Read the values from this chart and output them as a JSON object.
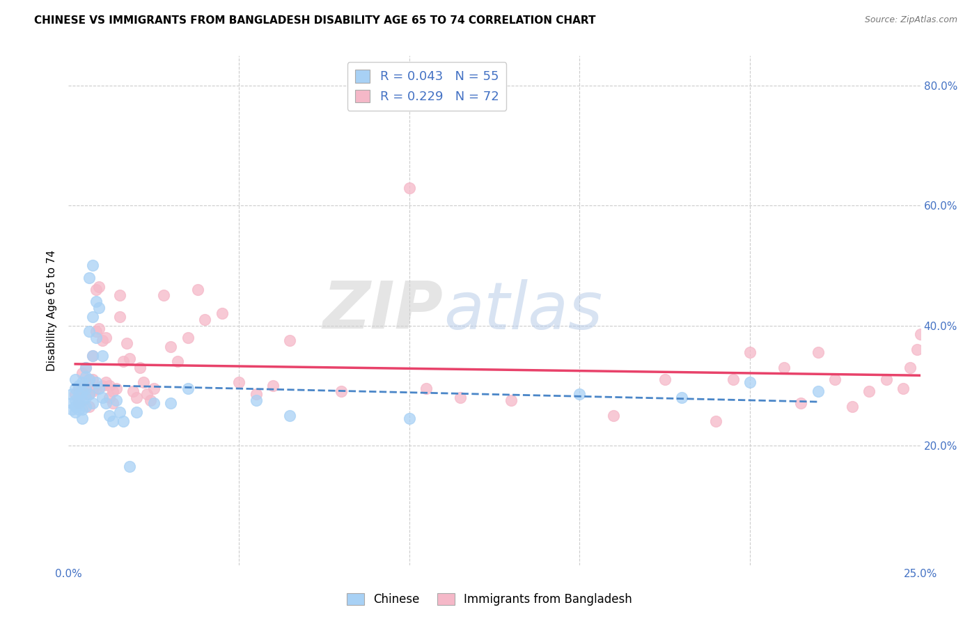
{
  "title": "CHINESE VS IMMIGRANTS FROM BANGLADESH DISABILITY AGE 65 TO 74 CORRELATION CHART",
  "source": "Source: ZipAtlas.com",
  "ylabel": "Disability Age 65 to 74",
  "xlim": [
    0.0,
    0.25
  ],
  "ylim": [
    0.0,
    0.85
  ],
  "xticks": [
    0.0,
    0.05,
    0.1,
    0.15,
    0.2,
    0.25
  ],
  "yticks": [
    0.0,
    0.2,
    0.4,
    0.6,
    0.8
  ],
  "ytick_labels": [
    "",
    "20.0%",
    "40.0%",
    "60.0%",
    "80.0%"
  ],
  "xtick_labels": [
    "0.0%",
    "",
    "",
    "",
    "",
    "25.0%"
  ],
  "watermark_zip": "ZIP",
  "watermark_atlas": "atlas",
  "legend_chinese_R": "0.043",
  "legend_chinese_N": "55",
  "legend_bangladesh_R": "0.229",
  "legend_bangladesh_N": "72",
  "chinese_color": "#A8D1F5",
  "bangladesh_color": "#F5B8C8",
  "trendline_chinese_color": "#4A86C8",
  "trendline_bangladesh_color": "#E8426A",
  "grid_color": "#CCCCCC",
  "axis_color": "#4472C4",
  "background_color": "#FFFFFF",
  "chinese_x": [
    0.001,
    0.001,
    0.001,
    0.002,
    0.002,
    0.002,
    0.002,
    0.002,
    0.003,
    0.003,
    0.003,
    0.003,
    0.004,
    0.004,
    0.004,
    0.004,
    0.004,
    0.005,
    0.005,
    0.005,
    0.005,
    0.005,
    0.006,
    0.006,
    0.006,
    0.006,
    0.007,
    0.007,
    0.007,
    0.007,
    0.008,
    0.008,
    0.008,
    0.009,
    0.009,
    0.01,
    0.01,
    0.011,
    0.012,
    0.013,
    0.014,
    0.015,
    0.016,
    0.018,
    0.02,
    0.025,
    0.03,
    0.035,
    0.055,
    0.065,
    0.1,
    0.15,
    0.18,
    0.2,
    0.22
  ],
  "chinese_y": [
    0.285,
    0.27,
    0.26,
    0.31,
    0.295,
    0.275,
    0.265,
    0.255,
    0.3,
    0.285,
    0.275,
    0.26,
    0.305,
    0.29,
    0.275,
    0.26,
    0.245,
    0.33,
    0.315,
    0.295,
    0.28,
    0.265,
    0.48,
    0.39,
    0.31,
    0.285,
    0.5,
    0.415,
    0.35,
    0.27,
    0.44,
    0.38,
    0.305,
    0.43,
    0.295,
    0.35,
    0.28,
    0.27,
    0.25,
    0.24,
    0.275,
    0.255,
    0.24,
    0.165,
    0.255,
    0.27,
    0.27,
    0.295,
    0.275,
    0.25,
    0.245,
    0.285,
    0.28,
    0.305,
    0.29
  ],
  "bangladesh_x": [
    0.002,
    0.003,
    0.003,
    0.004,
    0.004,
    0.005,
    0.005,
    0.005,
    0.006,
    0.006,
    0.006,
    0.007,
    0.007,
    0.007,
    0.008,
    0.008,
    0.008,
    0.009,
    0.009,
    0.01,
    0.01,
    0.011,
    0.011,
    0.012,
    0.012,
    0.013,
    0.013,
    0.014,
    0.015,
    0.015,
    0.016,
    0.017,
    0.018,
    0.019,
    0.02,
    0.021,
    0.022,
    0.023,
    0.024,
    0.025,
    0.028,
    0.03,
    0.032,
    0.035,
    0.038,
    0.04,
    0.045,
    0.05,
    0.055,
    0.06,
    0.065,
    0.08,
    0.1,
    0.105,
    0.115,
    0.13,
    0.16,
    0.175,
    0.19,
    0.195,
    0.2,
    0.21,
    0.215,
    0.22,
    0.225,
    0.23,
    0.235,
    0.24,
    0.245,
    0.247,
    0.249,
    0.25
  ],
  "bangladesh_y": [
    0.285,
    0.295,
    0.27,
    0.32,
    0.295,
    0.33,
    0.305,
    0.285,
    0.31,
    0.285,
    0.265,
    0.35,
    0.31,
    0.29,
    0.46,
    0.39,
    0.295,
    0.465,
    0.395,
    0.375,
    0.3,
    0.38,
    0.305,
    0.3,
    0.28,
    0.29,
    0.27,
    0.295,
    0.45,
    0.415,
    0.34,
    0.37,
    0.345,
    0.29,
    0.28,
    0.33,
    0.305,
    0.285,
    0.275,
    0.295,
    0.45,
    0.365,
    0.34,
    0.38,
    0.46,
    0.41,
    0.42,
    0.305,
    0.285,
    0.3,
    0.375,
    0.29,
    0.63,
    0.295,
    0.28,
    0.275,
    0.25,
    0.31,
    0.24,
    0.31,
    0.355,
    0.33,
    0.27,
    0.355,
    0.31,
    0.265,
    0.29,
    0.31,
    0.295,
    0.33,
    0.36,
    0.385
  ]
}
